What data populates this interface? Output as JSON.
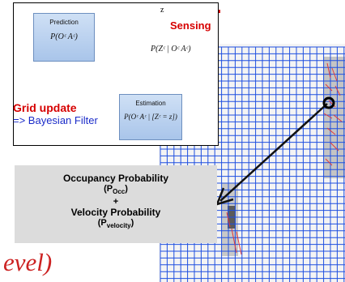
{
  "inset": {
    "prediction": {
      "title": "Prediction",
      "formula": "P(Oᶜ Aᶜ)"
    },
    "estimation": {
      "title": "Estimation",
      "formula": "P(Oᶜ Aᶜ | [Zᶜ = z])"
    },
    "sensing_formula": "P(Zᶜ | Oᶜ Aᶜ)",
    "z_label": "z",
    "sensing_label": "Sensing",
    "grid_update": "Grid update",
    "bayesian_filter": "=> Bayesian Filter"
  },
  "prob_box": {
    "occ_title": "Occupancy Probability",
    "occ_symbol_open": "(P",
    "occ_sub": "Occ",
    "occ_symbol_close": ")",
    "plus": "+",
    "vel_title": "Velocity Probability",
    "vel_symbol_open": "(P",
    "vel_sub": "velocity",
    "vel_symbol_close": ")"
  },
  "footer_fragment": "evel)",
  "colors": {
    "red": "#d60000",
    "blue_text": "#1b2cc9",
    "grid_line": "#1f4fe0",
    "box_fill": "#b9d0ef",
    "prob_box_fill": "#dcdcdc",
    "footer_red": "#cc2222"
  },
  "icons": [
    "sensor-device-icon",
    "sensing-arrow-icon",
    "pointer-arrow-icon",
    "target-circle-icon"
  ]
}
